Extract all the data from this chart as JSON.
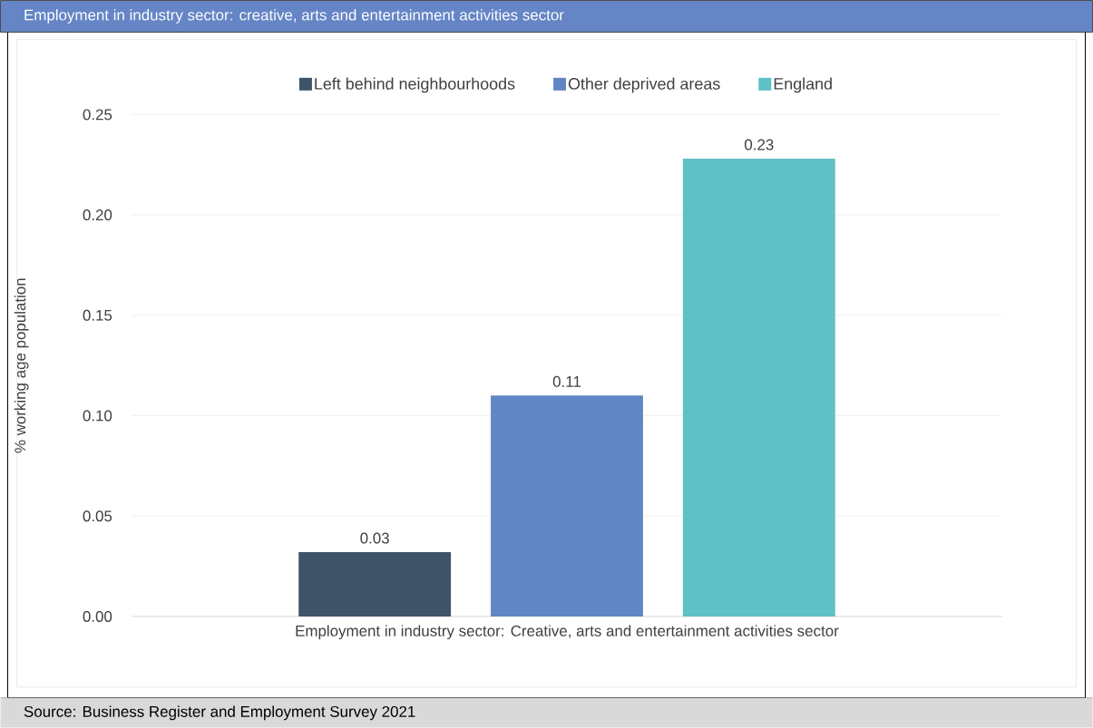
{
  "chart_data": {
    "type": "bar",
    "title": "Employment in industry sector: creative, arts and entertainment activities sector",
    "ylabel": "% working age population",
    "categories": [
      "Employment in industry sector: Creative, arts and entertainment activities sector"
    ],
    "series": [
      {
        "name": "Left behind neighbourhoods",
        "color": "#3f5468",
        "values": [
          0.032
        ],
        "value_labels": [
          "0.03"
        ]
      },
      {
        "name": "Other deprived areas",
        "color": "#6286c4",
        "values": [
          0.11
        ],
        "value_labels": [
          "0.11"
        ]
      },
      {
        "name": "England",
        "color": "#5fc0c6",
        "values": [
          0.228
        ],
        "value_labels": [
          "0.23"
        ]
      }
    ],
    "ylim": [
      0,
      0.25
    ],
    "yticks": [
      {
        "value": 0,
        "label": "0.00"
      },
      {
        "value": 0.05,
        "label": "0.05"
      },
      {
        "value": 0.1,
        "label": "0.10"
      },
      {
        "value": 0.15,
        "label": "0.15"
      },
      {
        "value": 0.2,
        "label": "0.20"
      },
      0.25
    ],
    "grid": "y",
    "legend": "top",
    "annotations": [
      "Source: Business Register and Employment Survey 2021"
    ]
  }
}
